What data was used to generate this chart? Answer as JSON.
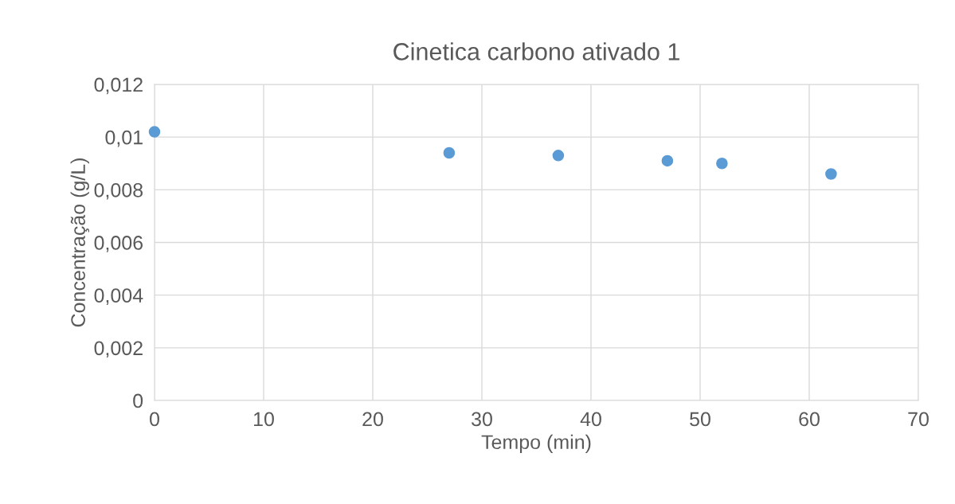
{
  "chart_data": {
    "type": "scatter",
    "title": "Cinetica carbono ativado 1",
    "xlabel": "Tempo (min)",
    "ylabel": "Concentração (g/L)",
    "x": [
      0,
      27,
      37,
      47,
      52,
      62
    ],
    "series": [
      {
        "color": "#5b9bd5",
        "values": [
          0.0102,
          0.0094,
          0.0093,
          0.0091,
          0.009,
          0.0086
        ]
      }
    ],
    "xlim": [
      0,
      70
    ],
    "xticks": [
      0,
      10,
      20,
      30,
      40,
      50,
      60,
      70
    ],
    "ylim": [
      0,
      0.012
    ],
    "yticks": [
      0,
      {
        "value": 0.002,
        "label": "0,002"
      },
      {
        "value": 0.004,
        "label": "0,004"
      },
      {
        "value": 0.006,
        "label": "0,006"
      },
      {
        "value": 0.008,
        "label": "0,008"
      },
      {
        "value": 0.01,
        "label": "0,01"
      },
      {
        "value": 0.012,
        "label": "0,012"
      }
    ],
    "grid": true,
    "marker": "circle"
  }
}
